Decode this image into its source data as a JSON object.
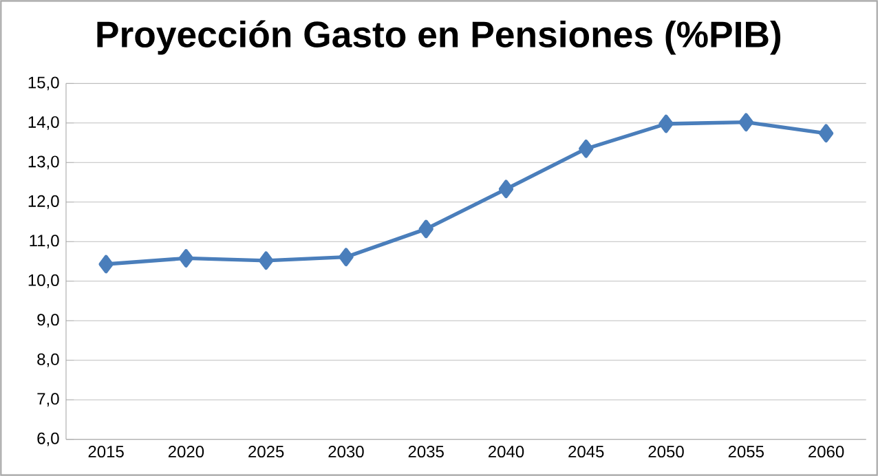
{
  "chart_data": {
    "type": "line",
    "title": "Proyección Gasto en Pensiones (%PIB)",
    "categories": [
      "2015",
      "2020",
      "2025",
      "2030",
      "2035",
      "2040",
      "2045",
      "2050",
      "2055",
      "2060"
    ],
    "series": [
      {
        "color": "#4a7ebb",
        "values": [
          10.43,
          10.58,
          10.52,
          10.61,
          11.32,
          12.33,
          13.35,
          13.98,
          14.02,
          13.74
        ]
      }
    ],
    "ylim": [
      6,
      15
    ],
    "yticks": [
      {
        "value": 6,
        "label": "6,0"
      },
      {
        "value": 7,
        "label": "7,0"
      },
      {
        "value": 8,
        "label": "8,0"
      },
      {
        "value": 9,
        "label": "9,0"
      },
      {
        "value": 10,
        "label": "10,0"
      },
      {
        "value": 11,
        "label": "11,0"
      },
      {
        "value": 12,
        "label": "12,0"
      },
      {
        "value": 13,
        "label": "13,0"
      },
      {
        "value": 14,
        "label": "14,0"
      },
      {
        "value": 15,
        "label": "15,0"
      }
    ],
    "grid": "y",
    "marker": "diamond",
    "line_style": "solid"
  }
}
